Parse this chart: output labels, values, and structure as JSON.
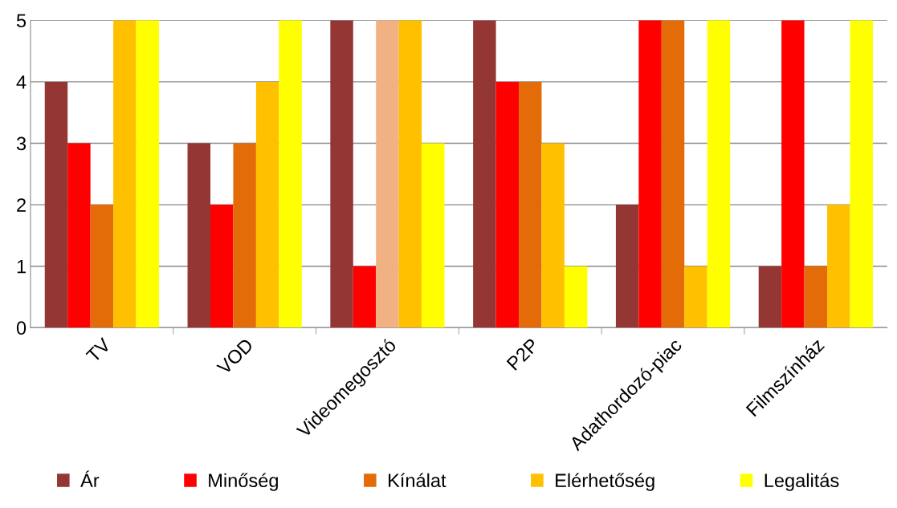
{
  "chart_data": {
    "type": "bar",
    "categories": [
      "TV",
      "VOD",
      "Videomegosztó",
      "P2P",
      "Adathordozó-piac",
      "Filmszínház"
    ],
    "series": [
      {
        "name": "Ár",
        "color": "#943634",
        "values": [
          4,
          3,
          5,
          5,
          2,
          1
        ]
      },
      {
        "name": "Minőség",
        "color": "#ff0000",
        "values": [
          3,
          2,
          1,
          4,
          5,
          5
        ]
      },
      {
        "name": "Kínálat",
        "color": "#e36c09",
        "colors": [
          "#e36c09",
          "#e36c09",
          "#f2b183",
          "#e36c09",
          "#e36c09",
          "#e36c09"
        ],
        "values": [
          2,
          3,
          5,
          4,
          5,
          1
        ]
      },
      {
        "name": "Elérhetőség",
        "color": "#ffc000",
        "values": [
          5,
          4,
          5,
          3,
          1,
          2
        ]
      },
      {
        "name": "Legalitás",
        "color": "#ffff00",
        "values": [
          5,
          5,
          3,
          1,
          5,
          5
        ]
      }
    ],
    "ylim": [
      0,
      5
    ],
    "yticks": [
      0,
      1,
      2,
      3,
      4,
      5
    ],
    "grid": "y",
    "legend": "bottom"
  }
}
